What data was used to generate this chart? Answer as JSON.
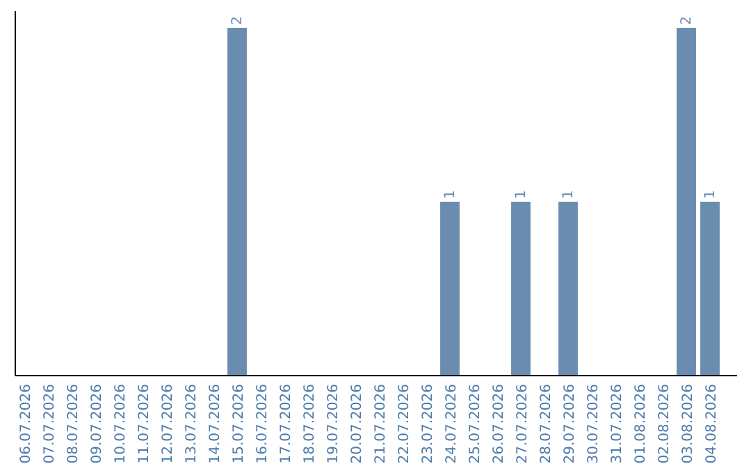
{
  "chart_data": {
    "type": "bar",
    "categories": [
      "06.07.2026",
      "07.07.2026",
      "08.07.2026",
      "09.07.2026",
      "10.07.2026",
      "11.07.2026",
      "12.07.2026",
      "13.07.2026",
      "14.07.2026",
      "15.07.2026",
      "16.07.2026",
      "17.07.2026",
      "18.07.2026",
      "19.07.2026",
      "20.07.2026",
      "21.07.2026",
      "22.07.2026",
      "23.07.2026",
      "24.07.2026",
      "25.07.2026",
      "26.07.2026",
      "27.07.2026",
      "28.07.2026",
      "29.07.2026",
      "30.07.2026",
      "31.07.2026",
      "01.08.2026",
      "02.08.2026",
      "03.08.2026",
      "04.08.2026"
    ],
    "values": [
      0,
      0,
      0,
      0,
      0,
      0,
      0,
      0,
      0,
      2,
      0,
      0,
      0,
      0,
      0,
      0,
      0,
      0,
      1,
      0,
      0,
      1,
      0,
      1,
      0,
      0,
      0,
      0,
      2,
      1
    ],
    "value_labels": [
      null,
      null,
      null,
      null,
      null,
      null,
      null,
      null,
      null,
      "2",
      null,
      null,
      null,
      null,
      null,
      null,
      null,
      null,
      "1",
      null,
      null,
      "1",
      null,
      "1",
      null,
      null,
      null,
      null,
      "2",
      "1"
    ],
    "color": "#6a8caf",
    "ylim": [
      0,
      2
    ],
    "tick_labels": "x"
  }
}
